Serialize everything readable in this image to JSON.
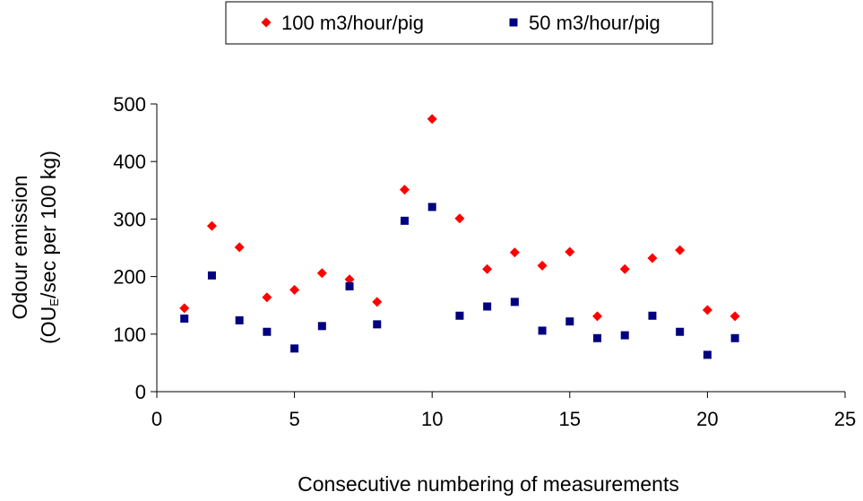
{
  "chart_data": {
    "type": "scatter",
    "xlabel": "Consecutive numbering of measurements",
    "ylabel_line1": "Odour emission",
    "ylabel_line2_parts": [
      "(OU",
      "E",
      "/sec per 100 kg)"
    ],
    "xlim": [
      0,
      25
    ],
    "ylim": [
      0,
      500
    ],
    "xticks": [
      0,
      5,
      10,
      15,
      20,
      25
    ],
    "yticks": [
      0,
      100,
      200,
      300,
      400,
      500
    ],
    "grid": false,
    "legend_position": "top-center",
    "series": [
      {
        "name": "100 m3/hour/pig",
        "marker": "diamond",
        "color": "#ff0000",
        "x": [
          1,
          2,
          3,
          4,
          5,
          6,
          7,
          8,
          9,
          10,
          11,
          12,
          13,
          14,
          15,
          16,
          17,
          18,
          19,
          20,
          21
        ],
        "y": [
          145,
          288,
          251,
          164,
          177,
          206,
          195,
          156,
          351,
          474,
          301,
          213,
          242,
          219,
          243,
          131,
          213,
          232,
          246,
          142,
          131
        ]
      },
      {
        "name": "50 m3/hour/pig",
        "marker": "square",
        "color": "#000080",
        "x": [
          1,
          2,
          3,
          4,
          5,
          6,
          7,
          8,
          9,
          10,
          11,
          12,
          13,
          14,
          15,
          16,
          17,
          18,
          19,
          20,
          21
        ],
        "y": [
          127,
          202,
          124,
          104,
          75,
          114,
          183,
          117,
          297,
          321,
          132,
          148,
          156,
          106,
          122,
          93,
          98,
          132,
          104,
          64,
          93
        ]
      }
    ]
  }
}
